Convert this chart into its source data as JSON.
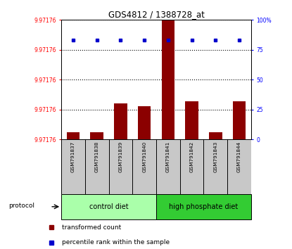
{
  "title": "GDS4812 / 1388728_at",
  "samples": [
    "GSM791837",
    "GSM791838",
    "GSM791839",
    "GSM791840",
    "GSM791841",
    "GSM791842",
    "GSM791843",
    "GSM791844"
  ],
  "bar_heights": [
    6,
    6,
    30,
    28,
    100,
    32,
    6,
    32
  ],
  "blue_dot_y": [
    83,
    83,
    83,
    83,
    83,
    83,
    83,
    83
  ],
  "bar_color": "#8B0000",
  "dot_color": "#0000CC",
  "y_ticks_left": [
    0,
    25,
    50,
    75,
    100
  ],
  "y_tick_labels_left": [
    "9.97176",
    "9.97176",
    "9.97176",
    "9.97176",
    "9.97176"
  ],
  "y_ticks_right": [
    0,
    25,
    50,
    75,
    100
  ],
  "y_tick_labels_right": [
    "0",
    "25",
    "50",
    "75",
    "100%"
  ],
  "groups": [
    {
      "label": "control diet",
      "start": 0,
      "end": 4,
      "color": "#AAFFAA"
    },
    {
      "label": "high phosphate diet",
      "start": 4,
      "end": 8,
      "color": "#33CC33"
    }
  ],
  "protocol_label": "protocol",
  "legend1": "transformed count",
  "legend2": "percentile rank within the sample",
  "bg_color": "#FFFFFF",
  "plot_bg": "#FFFFFF",
  "header_bg": "#C8C8C8"
}
